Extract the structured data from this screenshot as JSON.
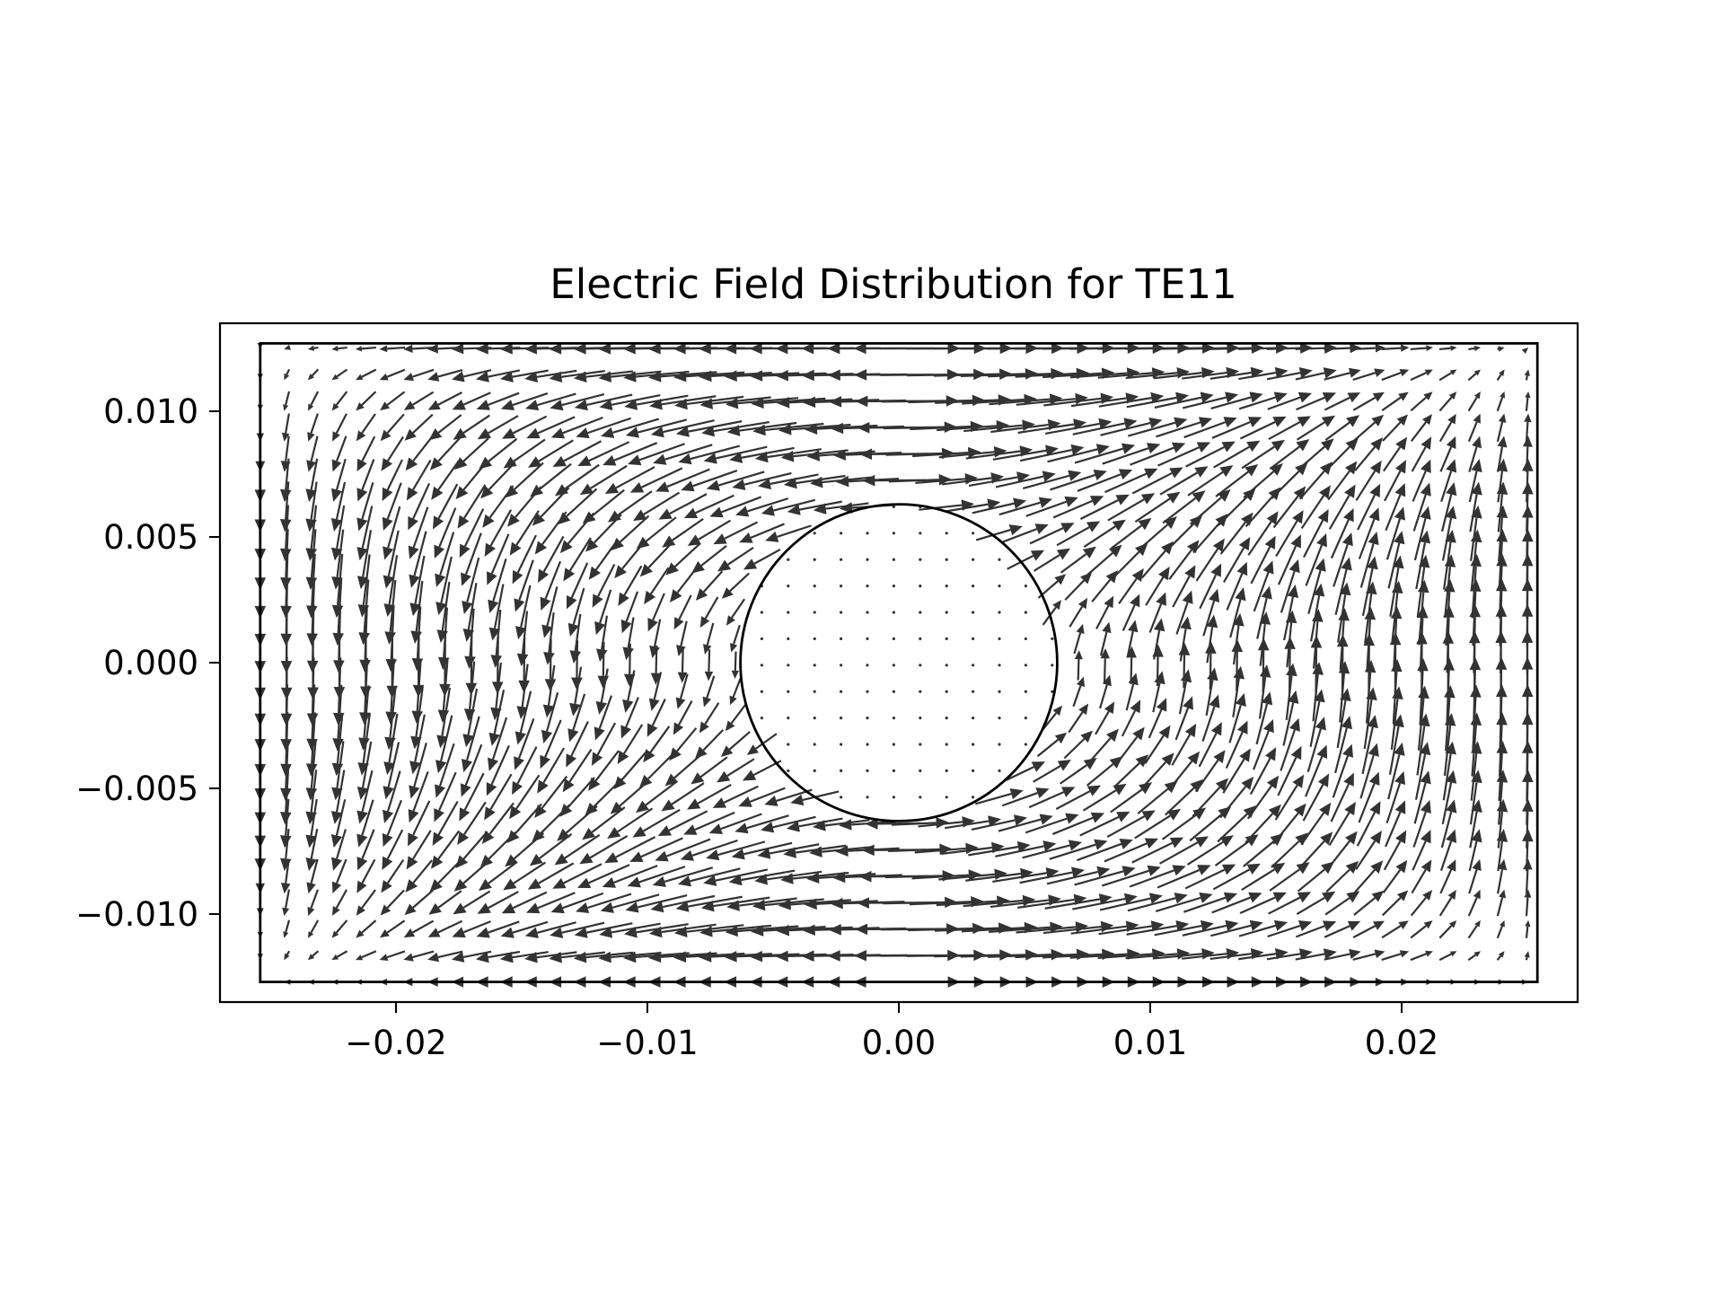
{
  "chart_data": {
    "type": "quiver",
    "title": "Electric Field Distribution for TE11",
    "xlabel": "",
    "ylabel": "",
    "xlim": [
      -0.027,
      0.027
    ],
    "ylim": [
      -0.0135,
      0.0135
    ],
    "x_ticks": [
      {
        "value": -0.02,
        "label": "−0.02"
      },
      {
        "value": -0.01,
        "label": "−0.01"
      },
      {
        "value": 0.0,
        "label": "0.00"
      },
      {
        "value": 0.01,
        "label": "0.01"
      },
      {
        "value": 0.02,
        "label": "0.02"
      }
    ],
    "y_ticks": [
      {
        "value": 0.01,
        "label": "0.010"
      },
      {
        "value": 0.005,
        "label": "0.005"
      },
      {
        "value": 0.0,
        "label": "0.000"
      },
      {
        "value": -0.005,
        "label": "−0.005"
      },
      {
        "value": -0.01,
        "label": "−0.010"
      }
    ],
    "waveguide": {
      "x": [
        -0.0254,
        0.0254
      ],
      "y": [
        -0.0127,
        0.0127
      ]
    },
    "circle": {
      "cx": 0.0,
      "cy": 0.0,
      "r": 0.0063
    },
    "grid_step": 0.00105,
    "arrow_color": "#333333",
    "outline_color": "#000000",
    "grid": false,
    "legend": "none"
  }
}
